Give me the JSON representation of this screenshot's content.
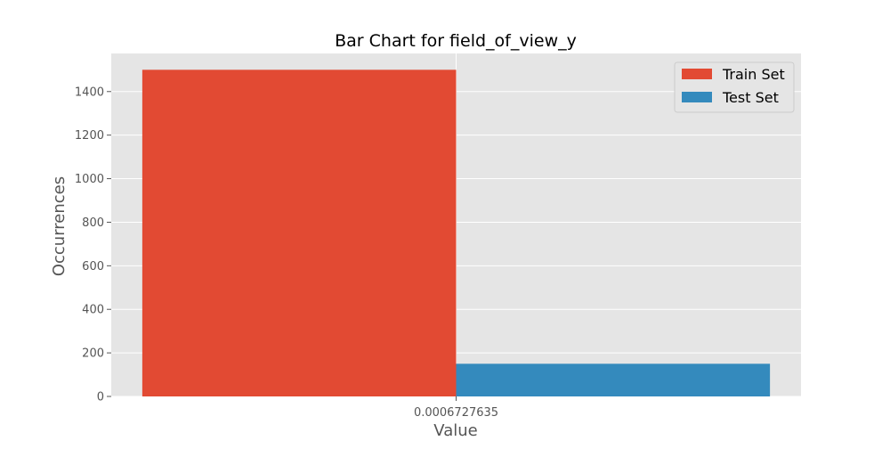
{
  "chart_data": {
    "type": "bar",
    "title": "Bar Chart for field_of_view_y",
    "xlabel": "Value",
    "ylabel": "Occurrences",
    "categories": [
      "0.0006727635"
    ],
    "series": [
      {
        "name": "Train Set",
        "values": [
          1500
        ],
        "color": "#E24A33"
      },
      {
        "name": "Test Set",
        "values": [
          150
        ],
        "color": "#348ABD"
      }
    ],
    "ylim": [
      0,
      1575
    ],
    "yticks": [
      0,
      200,
      400,
      600,
      800,
      1000,
      1200,
      1400
    ],
    "grid": true,
    "legend_position": "top-right",
    "style": {
      "plot_background": "#E5E5E5",
      "grid_color": "#FFFFFF",
      "text_color": "#555555",
      "title_color": "#000000"
    }
  }
}
